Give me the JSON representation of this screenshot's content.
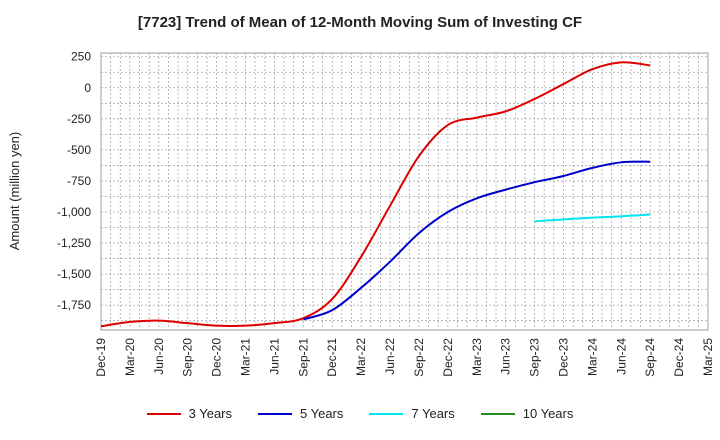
{
  "chart_data": {
    "type": "line",
    "title": "[7723]  Trend of Mean of 12-Month Moving Sum of Investing CF",
    "ylabel": "Amount (million yen)",
    "xlabel": "",
    "ylim": [
      -1950,
      280
    ],
    "yticks": [
      250,
      0,
      -250,
      -500,
      -750,
      -1000,
      -1250,
      -1500,
      -1750
    ],
    "ytick_labels": [
      "250",
      "0",
      "-250",
      "-500",
      "-750",
      "-1,000",
      "-1,250",
      "-1,500",
      "-1,750"
    ],
    "x_categories": [
      "Dec-19",
      "Mar-20",
      "Jun-20",
      "Sep-20",
      "Dec-20",
      "Mar-21",
      "Jun-21",
      "Sep-21",
      "Dec-21",
      "Mar-22",
      "Jun-22",
      "Sep-22",
      "Dec-22",
      "Mar-23",
      "Jun-23",
      "Sep-23",
      "Dec-23",
      "Mar-24",
      "Jun-24",
      "Sep-24",
      "Dec-24",
      "Mar-25"
    ],
    "grid": true,
    "legend_position": "bottom",
    "series": [
      {
        "name": "3 Years",
        "color": "#dd0000",
        "x": [
          "Dec-19",
          "Mar-20",
          "Jun-20",
          "Sep-20",
          "Dec-20",
          "Mar-21",
          "Jun-21",
          "Sep-21",
          "Dec-21",
          "Mar-22",
          "Jun-22",
          "Sep-22",
          "Dec-22",
          "Mar-23",
          "Jun-23",
          "Sep-23",
          "Dec-23",
          "Mar-24",
          "Jun-24",
          "Sep-24"
        ],
        "values": [
          -1920,
          -1885,
          -1875,
          -1895,
          -1915,
          -1915,
          -1895,
          -1855,
          -1700,
          -1360,
          -950,
          -550,
          -300,
          -240,
          -190,
          -90,
          30,
          150,
          205,
          180
        ]
      },
      {
        "name": "5 Years",
        "color": "#0000cc",
        "x": [
          "Sep-21",
          "Dec-21",
          "Mar-22",
          "Jun-22",
          "Sep-22",
          "Dec-22",
          "Mar-23",
          "Jun-23",
          "Sep-23",
          "Dec-23",
          "Mar-24",
          "Jun-24",
          "Sep-24"
        ],
        "values": [
          -1865,
          -1790,
          -1610,
          -1400,
          -1170,
          -1000,
          -890,
          -820,
          -760,
          -710,
          -645,
          -600,
          -595
        ]
      },
      {
        "name": "7 Years",
        "color": "#00e5ee",
        "x": [
          "Sep-23",
          "Dec-23",
          "Mar-24",
          "Jun-24",
          "Sep-24"
        ],
        "values": [
          -1075,
          -1060,
          -1045,
          -1035,
          -1020
        ]
      },
      {
        "name": "10 Years",
        "color": "#228b22",
        "x": [],
        "values": []
      }
    ]
  }
}
